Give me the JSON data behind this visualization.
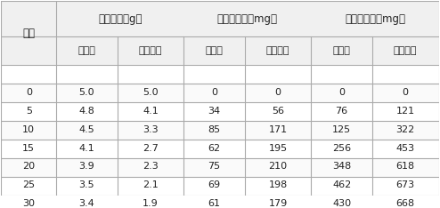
{
  "col_header_row1": [
    "",
    "秸秆重量（g）",
    "",
    "还原糖含量（mg）",
    "",
    "粗蛋白含量（mg）",
    ""
  ],
  "col_header_row2": [
    "天数",
    "红球菌",
    "复合菌剂",
    "红球菌",
    "复合菌剂",
    "红球菌",
    "复合菌剂"
  ],
  "rows": [
    [
      "0",
      "5.0",
      "5.0",
      "0",
      "0",
      "0",
      "0"
    ],
    [
      "5",
      "4.8",
      "4.1",
      "34",
      "56",
      "76",
      "121"
    ],
    [
      "10",
      "4.5",
      "3.3",
      "85",
      "171",
      "125",
      "322"
    ],
    [
      "15",
      "4.1",
      "2.7",
      "62",
      "195",
      "256",
      "453"
    ],
    [
      "20",
      "3.9",
      "2.3",
      "75",
      "210",
      "348",
      "618"
    ],
    [
      "25",
      "3.5",
      "2.1",
      "69",
      "198",
      "462",
      "673"
    ],
    [
      "30",
      "3.4",
      "1.9",
      "61",
      "179",
      "430",
      "668"
    ]
  ],
  "bg_color": "#f5f5f5",
  "header_bg": "#e8e8e8",
  "line_color": "#aaaaaa",
  "text_color": "#222222",
  "font_size": 8,
  "title_font_size": 8.5
}
